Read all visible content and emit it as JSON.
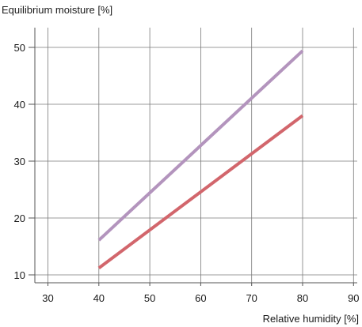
{
  "chart_data": {
    "type": "line",
    "ylabel": "Equilibrium moisture [%]",
    "xlabel": "Relative humidity [%]",
    "xlim": [
      30,
      90
    ],
    "ylim": [
      10,
      50
    ],
    "xticks": [
      30,
      40,
      50,
      60,
      70,
      80,
      90
    ],
    "yticks": [
      10,
      20,
      30,
      40,
      50
    ],
    "grid": true,
    "series": [
      {
        "color": "#b394bd",
        "x": [
          40,
          80
        ],
        "y": [
          16.1,
          49.4
        ]
      },
      {
        "color": "#d2666c",
        "x": [
          40,
          80
        ],
        "y": [
          11.2,
          38.0
        ]
      }
    ]
  }
}
